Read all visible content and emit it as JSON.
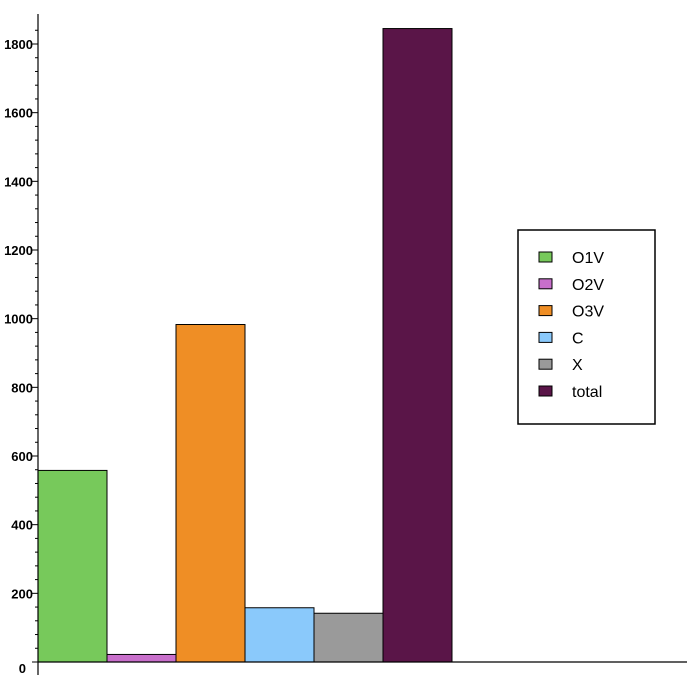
{
  "chart_data": {
    "type": "bar",
    "title": "",
    "xlabel": "",
    "ylabel": "",
    "ylim": [
      0,
      1880
    ],
    "yticks": [
      0,
      200,
      400,
      600,
      800,
      1000,
      1200,
      1400,
      1600,
      1800
    ],
    "series": [
      {
        "name": "O1V",
        "value": 558,
        "color": "#77c95b"
      },
      {
        "name": "O2V",
        "value": 22,
        "color": "#c86fcb"
      },
      {
        "name": "O3V",
        "value": 983,
        "color": "#ef8e25"
      },
      {
        "name": "C",
        "value": 158,
        "color": "#8ac9fb"
      },
      {
        "name": "X",
        "value": 142,
        "color": "#9a9a9a"
      },
      {
        "name": "total",
        "value": 1845,
        "color": "#5a1548"
      }
    ],
    "legend": {
      "position": "right",
      "entries": [
        "O1V",
        "O2V",
        "O3V",
        "C",
        "X",
        "total"
      ]
    },
    "grid": false
  }
}
